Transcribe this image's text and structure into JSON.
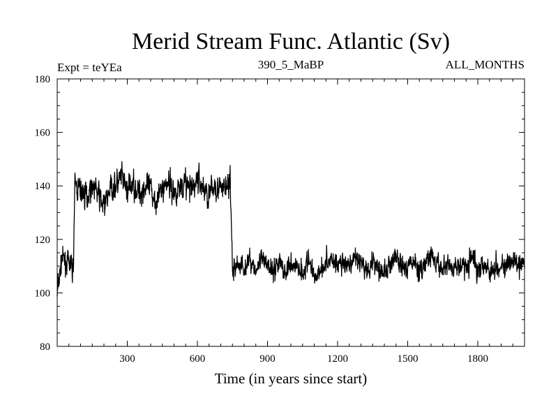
{
  "chart_data": {
    "type": "line",
    "title": "Merid Stream Func. Atlantic (Sv)",
    "subtitle_left": "Expt = teYEa",
    "subtitle_center": "390_5_MaBP",
    "subtitle_right": "ALL_MONTHS",
    "xlabel": "Time (in years since start)",
    "ylabel": "",
    "xlim": [
      0,
      2000
    ],
    "ylim": [
      80,
      180
    ],
    "x_ticks": [
      300,
      600,
      900,
      1200,
      1500,
      1800
    ],
    "y_ticks": [
      80,
      100,
      120,
      140,
      160,
      180
    ],
    "grid": false,
    "legend": "none",
    "line_color": "#000000",
    "series": [
      {
        "x": [
          0,
          20,
          40,
          60,
          68,
          75,
          100,
          125,
          150,
          175,
          200,
          225,
          250,
          275,
          300,
          325,
          350,
          375,
          400,
          425,
          450,
          475,
          500,
          525,
          550,
          575,
          600,
          625,
          650,
          675,
          700,
          725,
          740,
          750,
          775,
          800,
          825,
          850,
          875,
          900,
          925,
          950,
          975,
          1000,
          1025,
          1050,
          1075,
          1100,
          1125,
          1150,
          1175,
          1200,
          1225,
          1250,
          1275,
          1300,
          1325,
          1350,
          1375,
          1400,
          1425,
          1450,
          1475,
          1500,
          1525,
          1550,
          1575,
          1600,
          1625,
          1650,
          1675,
          1700,
          1725,
          1750,
          1775,
          1800,
          1825,
          1850,
          1875,
          1900,
          1925,
          1950,
          1975,
          2000
        ],
        "values": [
          100,
          113,
          111,
          110,
          108,
          140,
          138,
          136,
          141,
          137,
          132,
          139,
          140,
          143,
          138,
          141,
          137,
          140,
          138,
          135,
          139,
          142,
          137,
          140,
          141,
          138,
          143,
          139,
          136,
          141,
          138,
          140,
          141,
          108,
          111,
          109,
          113,
          108,
          112,
          110,
          109,
          112,
          107,
          111,
          110,
          108,
          112,
          106,
          109,
          111,
          113,
          110,
          112,
          108,
          114,
          111,
          109,
          112,
          110,
          107,
          111,
          113,
          109,
          110,
          112,
          108,
          111,
          114,
          110,
          109,
          112,
          108,
          111,
          110,
          113,
          109,
          112,
          108,
          110,
          111,
          109,
          112,
          110,
          111
        ]
      }
    ]
  }
}
